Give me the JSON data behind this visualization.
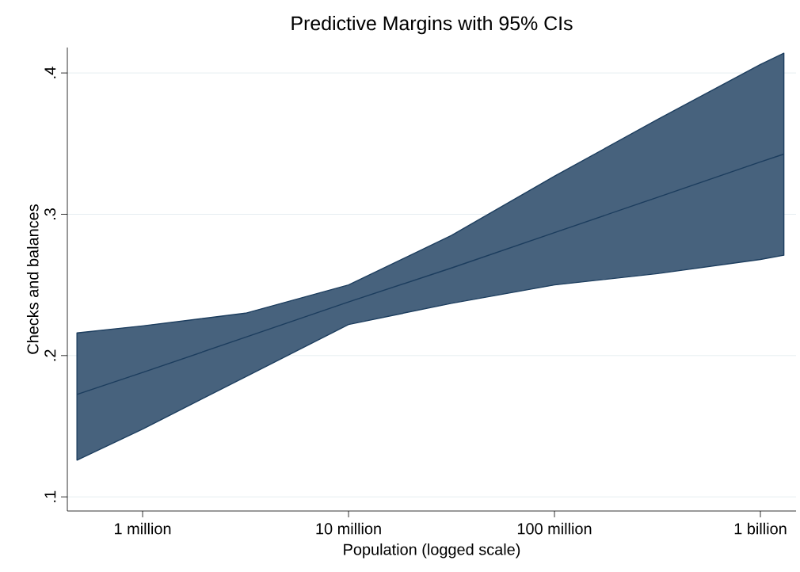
{
  "chart_data": {
    "type": "line",
    "title": "Predictive Margins with 95% CIs",
    "xlabel": "Population (logged scale)",
    "ylabel": "Checks and balances",
    "log": "x",
    "grid": "y",
    "x": [
      480000,
      1000000,
      3162278,
      10000000,
      31622777,
      100000000,
      316227766,
      1000000000,
      1300000000
    ],
    "series": [
      {
        "color": "#1c3d5e",
        "values": [
          0.1725,
          0.188,
          0.213,
          0.238,
          0.262,
          0.287,
          0.312,
          0.337,
          0.3426
        ],
        "lower": [
          0.126,
          0.148,
          0.185,
          0.222,
          0.237,
          0.25,
          0.258,
          0.268,
          0.271
        ],
        "upper": [
          0.216,
          0.221,
          0.23,
          0.25,
          0.285,
          0.327,
          0.367,
          0.406,
          0.414
        ]
      }
    ],
    "xlim": [
      431000,
      1490000000
    ],
    "ylim": [
      0.09,
      0.418
    ],
    "xticks": [
      {
        "value": 1000000,
        "label": "1 million"
      },
      {
        "value": 10000000,
        "label": "10 million"
      },
      {
        "value": 100000000,
        "label": "100 million"
      },
      {
        "value": 1000000000,
        "label": "1 billion"
      }
    ],
    "yticks": [
      {
        "value": 0.1,
        "label": ".1"
      },
      {
        "value": 0.2,
        "label": ".2"
      },
      {
        "value": 0.3,
        "label": ".3"
      },
      {
        "value": 0.4,
        "label": ".4"
      }
    ]
  }
}
